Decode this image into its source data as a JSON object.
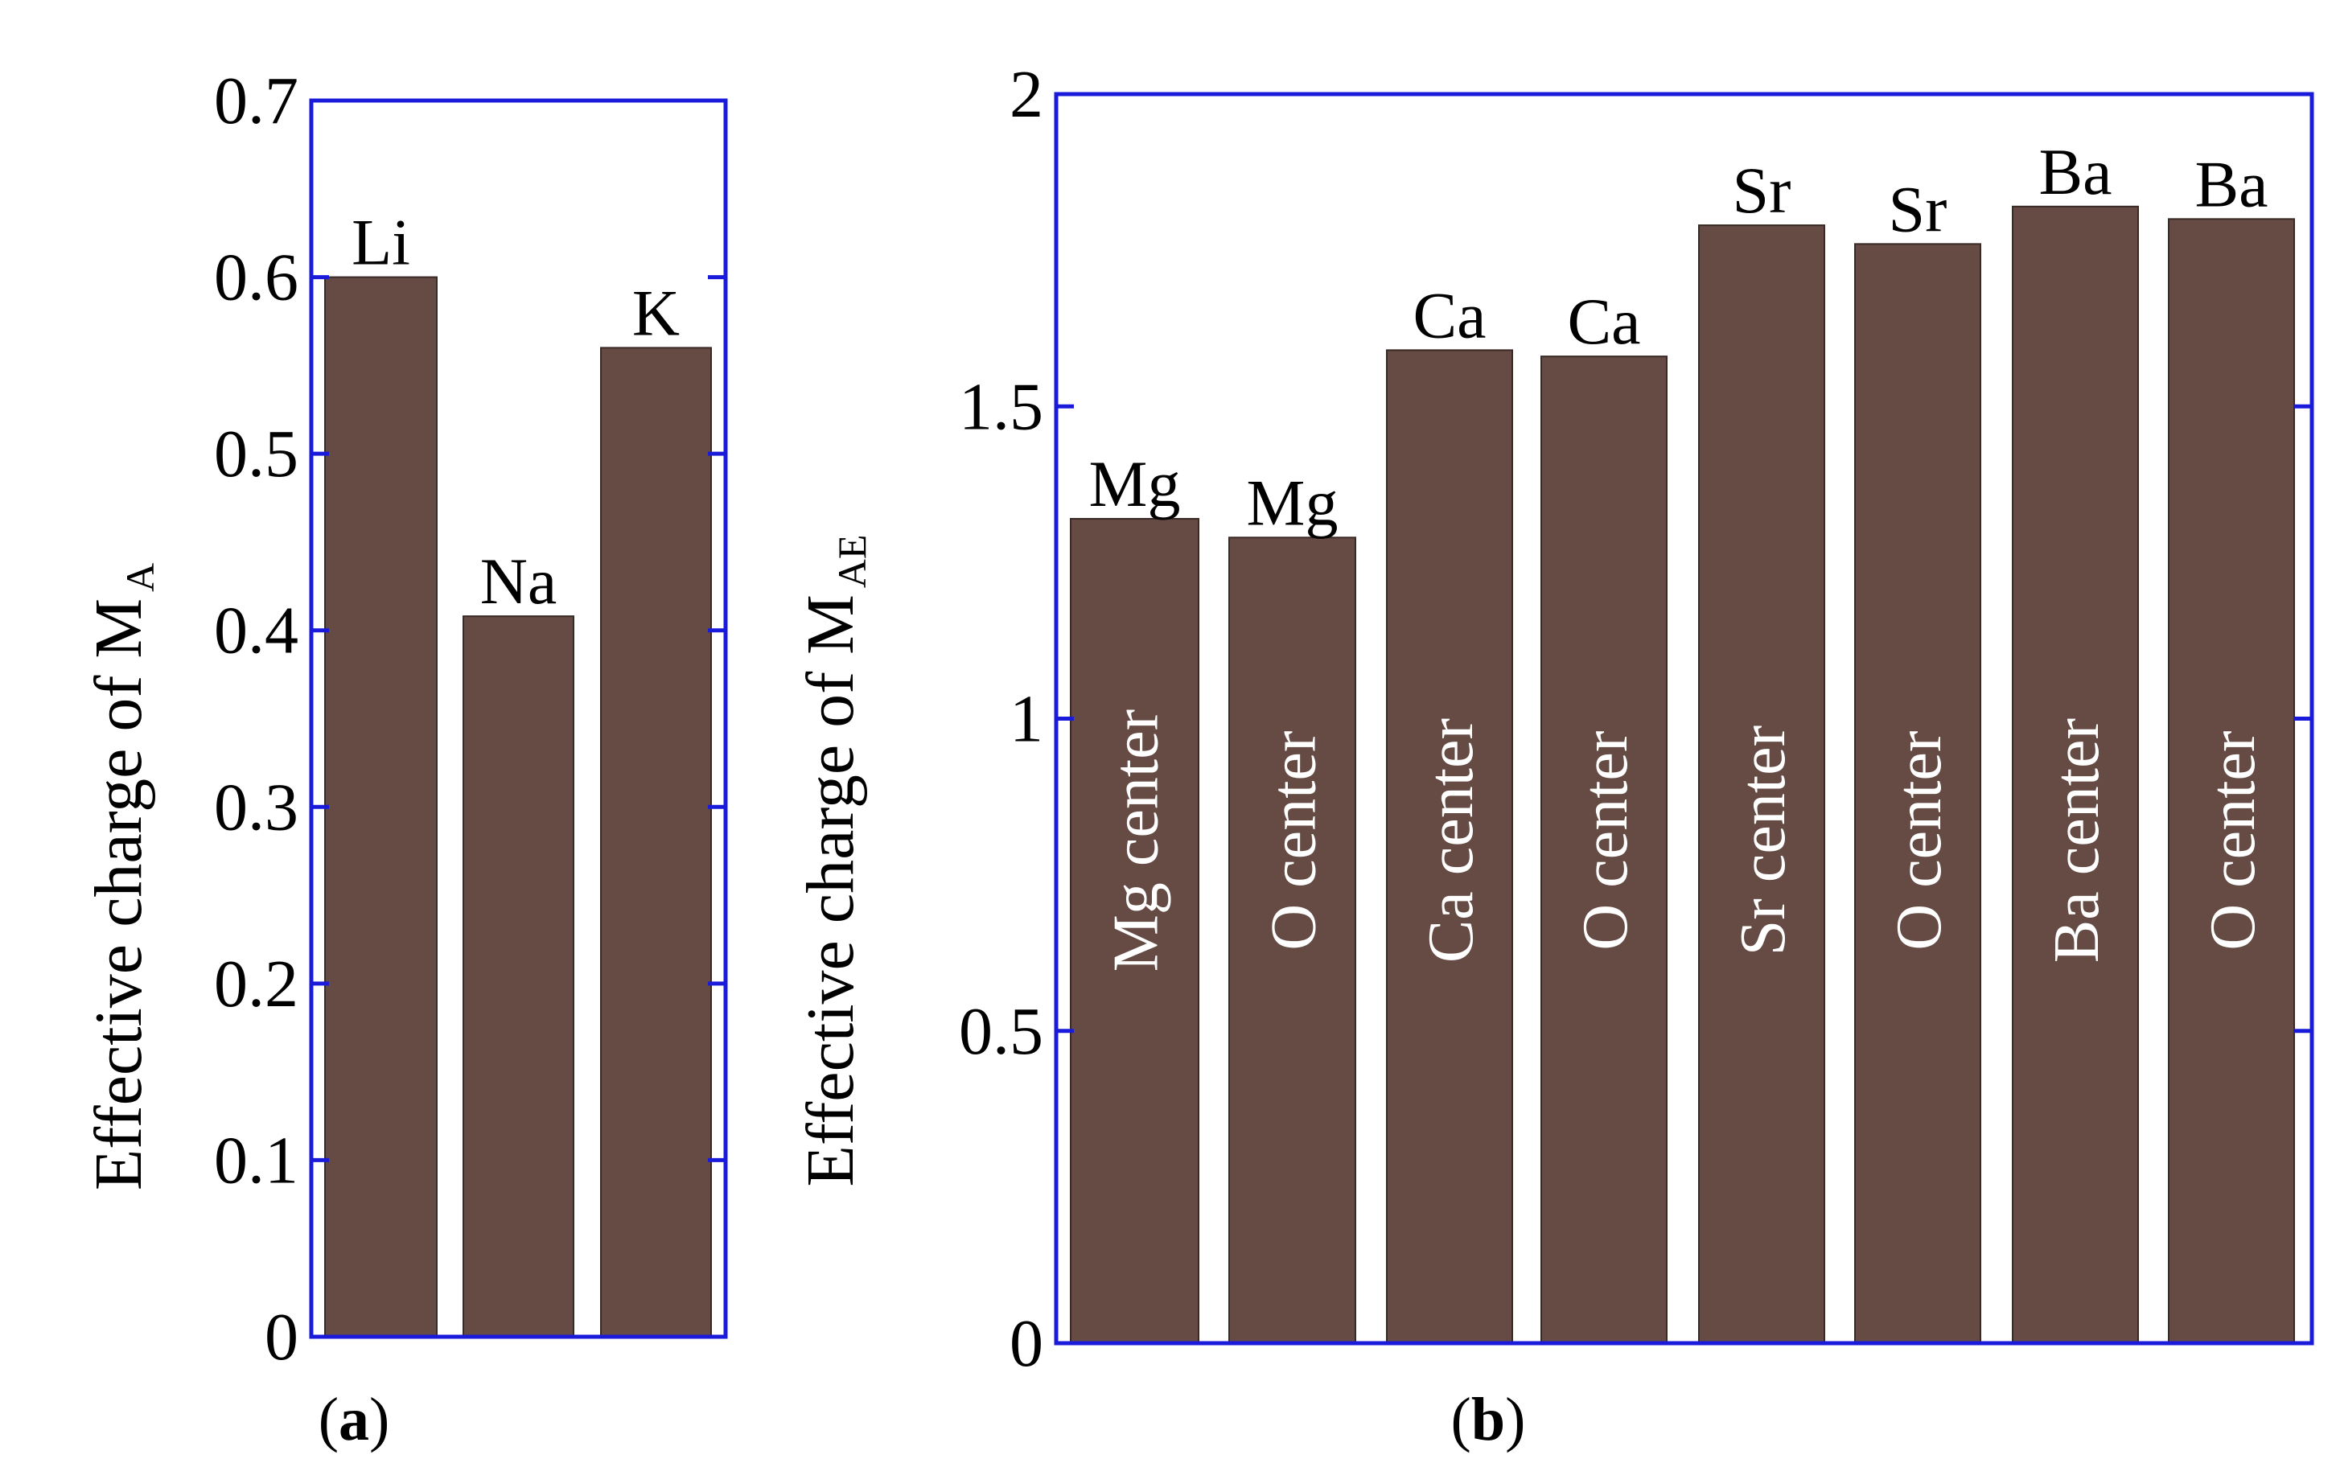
{
  "colors": {
    "bar": "#654b44",
    "axis": "#1a1adb",
    "text": "#000000",
    "inner_text": "#ffffff"
  },
  "chart_data": [
    {
      "type": "bar",
      "panel": "a",
      "panel_label": {
        "open": "(",
        "letter": "a",
        "close": ")"
      },
      "categories": [
        "Li",
        "Na",
        "K"
      ],
      "values": [
        0.6,
        0.408,
        0.56
      ],
      "bar_labels": [
        "Li",
        "Na",
        "K"
      ],
      "inner_labels": [],
      "ylabel": {
        "main": "Effective charge of M",
        "sub": "A"
      },
      "ylim": [
        0,
        0.7
      ],
      "yticks": [
        "0",
        "0.1",
        "0.2",
        "0.3",
        "0.4",
        "0.5",
        "0.6",
        "0.7"
      ],
      "ytick_values": [
        0,
        0.1,
        0.2,
        0.3,
        0.4,
        0.5,
        0.6,
        0.7
      ],
      "grid": false
    },
    {
      "type": "bar",
      "panel": "b",
      "panel_label": {
        "open": "(",
        "letter": "b",
        "close": ")"
      },
      "categories": [
        "Mg center",
        "O center",
        "Ca center",
        "O center",
        "Sr center",
        "O center",
        "Ba center",
        "O center"
      ],
      "values": [
        1.32,
        1.29,
        1.59,
        1.58,
        1.79,
        1.76,
        1.82,
        1.8
      ],
      "bar_labels": [
        "Mg",
        "Mg",
        "Ca",
        "Ca",
        "Sr",
        "Sr",
        "Ba",
        "Ba"
      ],
      "inner_labels": [
        "Mg center",
        "O center",
        "Ca center",
        "O center",
        "Sr center",
        "O center",
        "Ba center",
        "O center"
      ],
      "ylabel": {
        "main": "Effective charge of M",
        "sub": "AE"
      },
      "ylim": [
        0,
        2
      ],
      "yticks": [
        "0",
        "0.5",
        "1",
        "1.5",
        "2"
      ],
      "ytick_values": [
        0,
        0.5,
        1,
        1.5,
        2
      ],
      "grid": false
    }
  ]
}
